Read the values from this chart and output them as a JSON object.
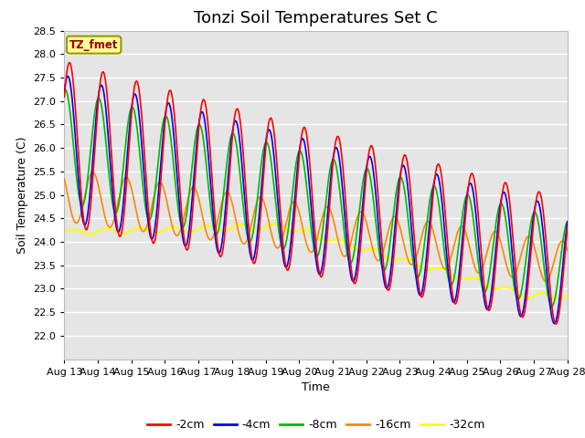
{
  "title": "Tonzi Soil Temperatures Set C",
  "xlabel": "Time",
  "ylabel": "Soil Temperature (C)",
  "ylim": [
    21.5,
    28.5
  ],
  "yticks": [
    22.0,
    22.5,
    23.0,
    23.5,
    24.0,
    24.5,
    25.0,
    25.5,
    26.0,
    26.5,
    27.0,
    27.5,
    28.0,
    28.5
  ],
  "xtick_labels": [
    "Aug 13",
    "Aug 14",
    "Aug 15",
    "Aug 16",
    "Aug 17",
    "Aug 18",
    "Aug 19",
    "Aug 20",
    "Aug 21",
    "Aug 22",
    "Aug 23",
    "Aug 24",
    "Aug 25",
    "Aug 26",
    "Aug 27",
    "Aug 28"
  ],
  "colors": {
    "-2cm": "#ff0000",
    "-4cm": "#0000ff",
    "-8cm": "#00bb00",
    "-16cm": "#ff8800",
    "-32cm": "#ffff00"
  },
  "legend_label": "TZ_fmet",
  "legend_bg": "#ffff99",
  "legend_border": "#999900",
  "background_color": "#e5e5e5",
  "grid_color": "#ffffff",
  "title_fontsize": 13,
  "axis_fontsize": 8,
  "legend_fontsize": 9
}
